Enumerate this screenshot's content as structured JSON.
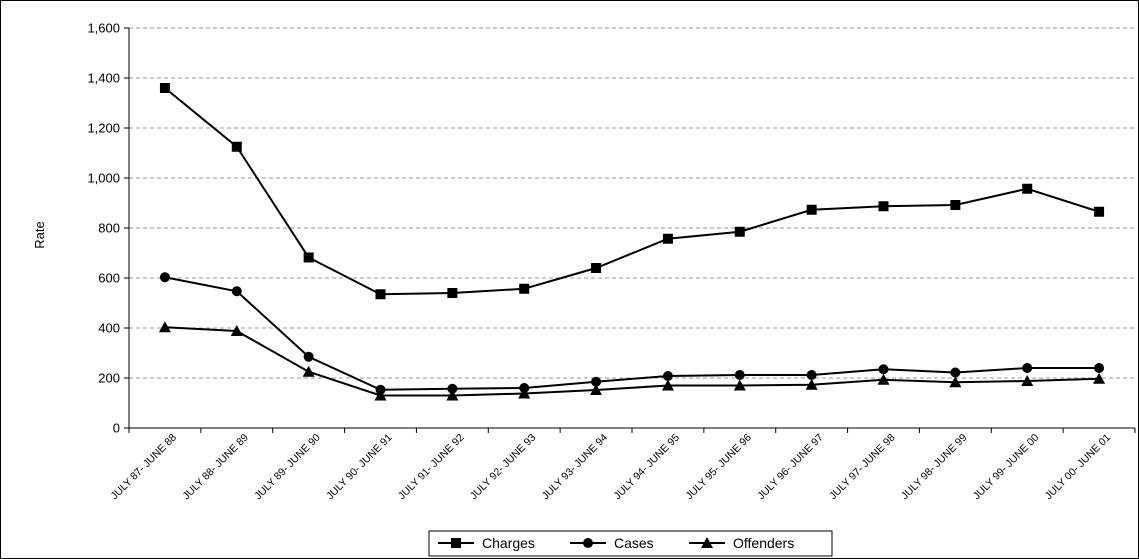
{
  "chart_data": {
    "type": "line",
    "title": "",
    "xlabel": "",
    "ylabel": "Rate",
    "ylim": [
      0,
      1600
    ],
    "yticks": [
      "0",
      "200",
      "400",
      "600",
      "800",
      "1,000",
      "1,200",
      "1,400",
      "1,600"
    ],
    "ytick_values": [
      0,
      200,
      400,
      600,
      800,
      1000,
      1200,
      1400,
      1600
    ],
    "categories": [
      "JULY 87- JUNE 88",
      "JULY 88- JUNE 89",
      "JULY 89- JUNE 90",
      "JULY 90- JUNE 91",
      "JULY 91- JUNE 92",
      "JULY 92- JUNE 93",
      "JULY 93- JUNE 94",
      "JULY 94- JUNE 95",
      "JULY 95- JUNE 96",
      "JULY 96- JUNE 97",
      "JULY 97- JUNE 98",
      "JULY 98- JUNE 99",
      "JULY 99- JUNE 00",
      "JULY 00- JUNE 01"
    ],
    "grid": "horizontal dashed",
    "legend_position": "bottom",
    "series": [
      {
        "name": "Charges",
        "marker": "square",
        "values": [
          1360,
          1125,
          682,
          535,
          540,
          557,
          640,
          757,
          785,
          873,
          887,
          892,
          957,
          865
        ]
      },
      {
        "name": "Cases",
        "marker": "circle",
        "values": [
          603,
          547,
          285,
          153,
          157,
          160,
          185,
          208,
          212,
          212,
          235,
          222,
          240,
          240
        ]
      },
      {
        "name": "Offenders",
        "marker": "triangle",
        "values": [
          403,
          388,
          225,
          130,
          130,
          138,
          152,
          170,
          170,
          173,
          193,
          183,
          188,
          197
        ]
      }
    ],
    "colors": {
      "line": "#000000",
      "grid": "#999999",
      "background": "#ffffff"
    }
  }
}
